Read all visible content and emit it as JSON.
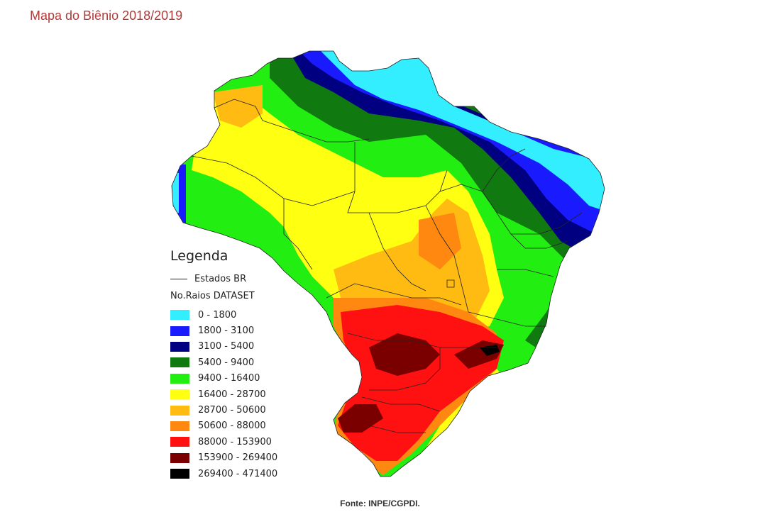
{
  "title": "Mapa do Biênio 2018/2019",
  "legend": {
    "title": "Legenda",
    "boundary_label": "Estados BR",
    "dataset_label": "No.Raios DATASET",
    "classes": [
      {
        "label": "0 - 1800",
        "color": "#33eeff"
      },
      {
        "label": "1800 - 3100",
        "color": "#1a1aff"
      },
      {
        "label": "3100 - 5400",
        "color": "#000080"
      },
      {
        "label": "5400 - 9400",
        "color": "#107a10"
      },
      {
        "label": "9400 - 16400",
        "color": "#22ee11"
      },
      {
        "label": "16400 - 28700",
        "color": "#ffff11"
      },
      {
        "label": "28700 - 50600",
        "color": "#ffbb11"
      },
      {
        "label": "50600 - 88000",
        "color": "#ff8811"
      },
      {
        "label": "88000 - 153900",
        "color": "#ff1111"
      },
      {
        "label": "153900 - 269400",
        "color": "#7a0000"
      },
      {
        "label": "269400 - 471400",
        "color": "#000000"
      }
    ]
  },
  "source": "Fonte: INPE/CGPDI."
}
